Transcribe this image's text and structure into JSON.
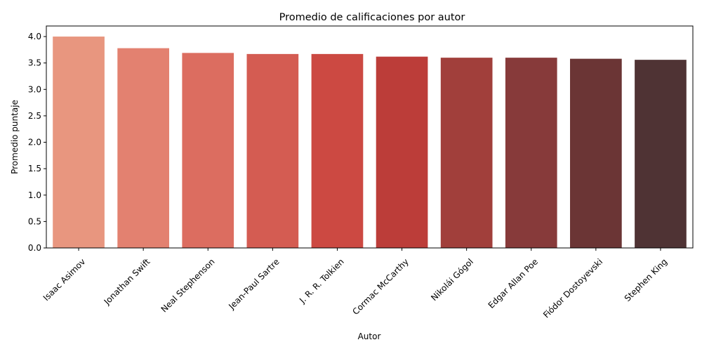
{
  "chart_data": {
    "type": "bar",
    "title": "Promedio de calificaciones por autor",
    "xlabel": "Autor",
    "ylabel": "Promedio puntaje",
    "categories": [
      "Isaac Asimov",
      "Jonathan Swift",
      "Neal Stephenson",
      "Jean-Paul Sartre",
      "J. R. R. Tolkien",
      "Cormac McCarthy",
      "Nikolái Gógol",
      "Edgar Allan Poe",
      "Fiódor Dostoyevski",
      "Stephen King"
    ],
    "values": [
      4.0,
      3.78,
      3.69,
      3.67,
      3.67,
      3.62,
      3.6,
      3.6,
      3.58,
      3.56
    ],
    "colors": [
      "#e8967f",
      "#e38170",
      "#dc6d60",
      "#d45c52",
      "#cc4942",
      "#bc3d39",
      "#a13f3b",
      "#873a3a",
      "#6b3535",
      "#4f3334"
    ],
    "ylim": [
      0,
      4.2
    ],
    "yticks": [
      "0.0",
      "0.5",
      "1.0",
      "1.5",
      "2.0",
      "2.5",
      "3.0",
      "3.5",
      "4.0"
    ],
    "grid": false,
    "legend": "none"
  }
}
